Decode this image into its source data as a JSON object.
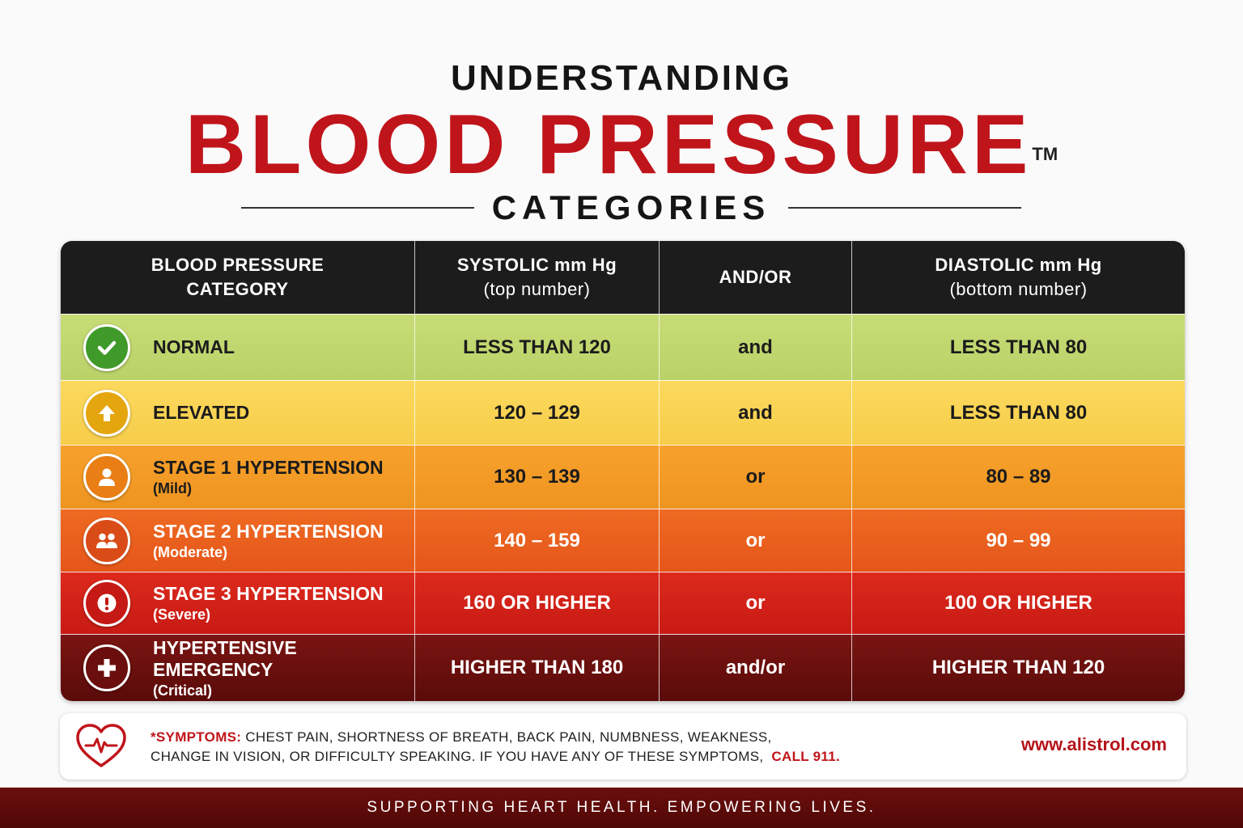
{
  "header": {
    "top": "UNDERSTANDING",
    "main": "BLOOD PRESSURE",
    "trademark": "TM",
    "sub": "CATEGORIES"
  },
  "table": {
    "columns": [
      {
        "line1": "BLOOD PRESSURE",
        "line2": "CATEGORY"
      },
      {
        "line1": "SYSTOLIC mm Hg",
        "line2": "(top number)"
      },
      {
        "line1": "AND/OR",
        "line2": ""
      },
      {
        "line1": "DIASTOLIC mm Hg",
        "line2": "(bottom number)"
      }
    ],
    "rows": [
      {
        "category": "NORMAL",
        "desc": "",
        "systolic": "LESS THAN 120",
        "conj": "and",
        "diastolic": "LESS THAN 80",
        "icon": "check-icon",
        "color": "#3f9a2a"
      },
      {
        "category": "ELEVATED",
        "desc": "",
        "systolic": "120 – 129",
        "conj": "and",
        "diastolic": "LESS THAN 80",
        "icon": "arrow-up-icon",
        "color": "#e3a60f"
      },
      {
        "category": "STAGE 1 HYPERTENSION",
        "desc": "(Mild)",
        "systolic": "130 – 139",
        "conj": "or",
        "diastolic": "80 – 89",
        "icon": "person-icon",
        "color": "#e87e14"
      },
      {
        "category": "STAGE 2 HYPERTENSION",
        "desc": "(Moderate)",
        "systolic": "140 – 159",
        "conj": "or",
        "diastolic": "90 – 99",
        "icon": "people-icon",
        "color": "#d94c17"
      },
      {
        "category": "STAGE 3 HYPERTENSION",
        "desc": "(Severe)",
        "systolic": "160 OR HIGHER",
        "conj": "or",
        "diastolic": "100 OR HIGHER",
        "icon": "exclamation-icon",
        "color": "#c51915"
      },
      {
        "category": "HYPERTENSIVE EMERGENCY",
        "desc": "(Critical)",
        "systolic": "HIGHER THAN 180",
        "conj": "and/or",
        "diastolic": "HIGHER THAN 120",
        "icon": "plus-cross-icon",
        "color": "#6a0f0d"
      }
    ]
  },
  "notice": {
    "label": "*SYMPTOMS:",
    "line1": "CHEST PAIN, SHORTNESS OF BREATH, BACK PAIN, NUMBNESS, WEAKNESS,",
    "line2": "CHANGE IN VISION, OR DIFFICULTY SPEAKING. IF YOU HAVE ANY OF THESE SYMPTOMS,",
    "call": "CALL 911.",
    "icon": "heart-pulse-icon",
    "website": "www.alistrol.com"
  },
  "footer": {
    "tagline": "SUPPORTING HEART HEALTH. EMPOWERING LIVES."
  }
}
